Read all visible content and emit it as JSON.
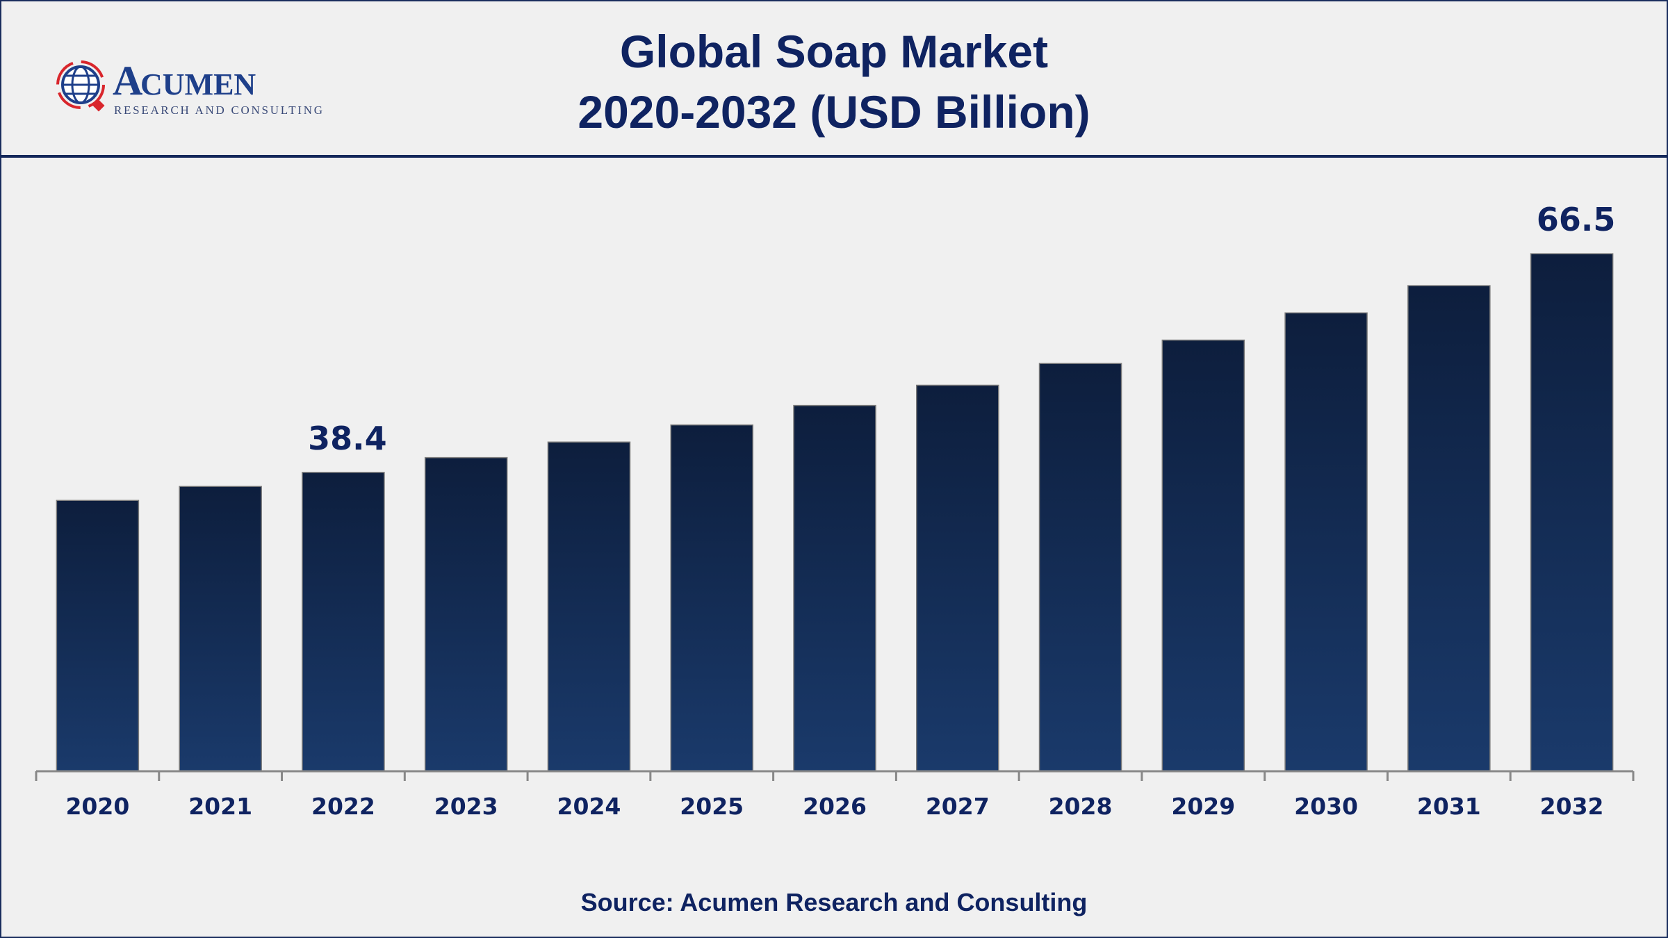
{
  "header": {
    "title_line1": "Global Soap Market",
    "title_line2": "2020-2032 (USD Billion)",
    "logo": {
      "name": "ACUMEN",
      "tagline": "RESEARCH AND CONSULTING"
    }
  },
  "footer": {
    "source": "Source: Acumen Research and Consulting"
  },
  "colors": {
    "bar_top": "#0d1e3d",
    "bar_bottom": "#1a3a6b",
    "text": "#0f2361",
    "logo_red": "#d9262c"
  },
  "chart_data": {
    "type": "bar",
    "title": "Global Soap Market 2020-2032 (USD Billion)",
    "categories": [
      "2020",
      "2021",
      "2022",
      "2023",
      "2024",
      "2025",
      "2026",
      "2027",
      "2028",
      "2029",
      "2030",
      "2031",
      "2032"
    ],
    "values": [
      34.8,
      36.6,
      38.4,
      40.3,
      42.3,
      44.5,
      47.0,
      49.6,
      52.4,
      55.4,
      58.9,
      62.4,
      66.5
    ],
    "data_labels": {
      "2022": "38.4",
      "2032": "66.5"
    },
    "xlabel": "",
    "ylabel": "",
    "ylim": [
      0,
      80
    ],
    "grid": false,
    "legend": "none"
  }
}
